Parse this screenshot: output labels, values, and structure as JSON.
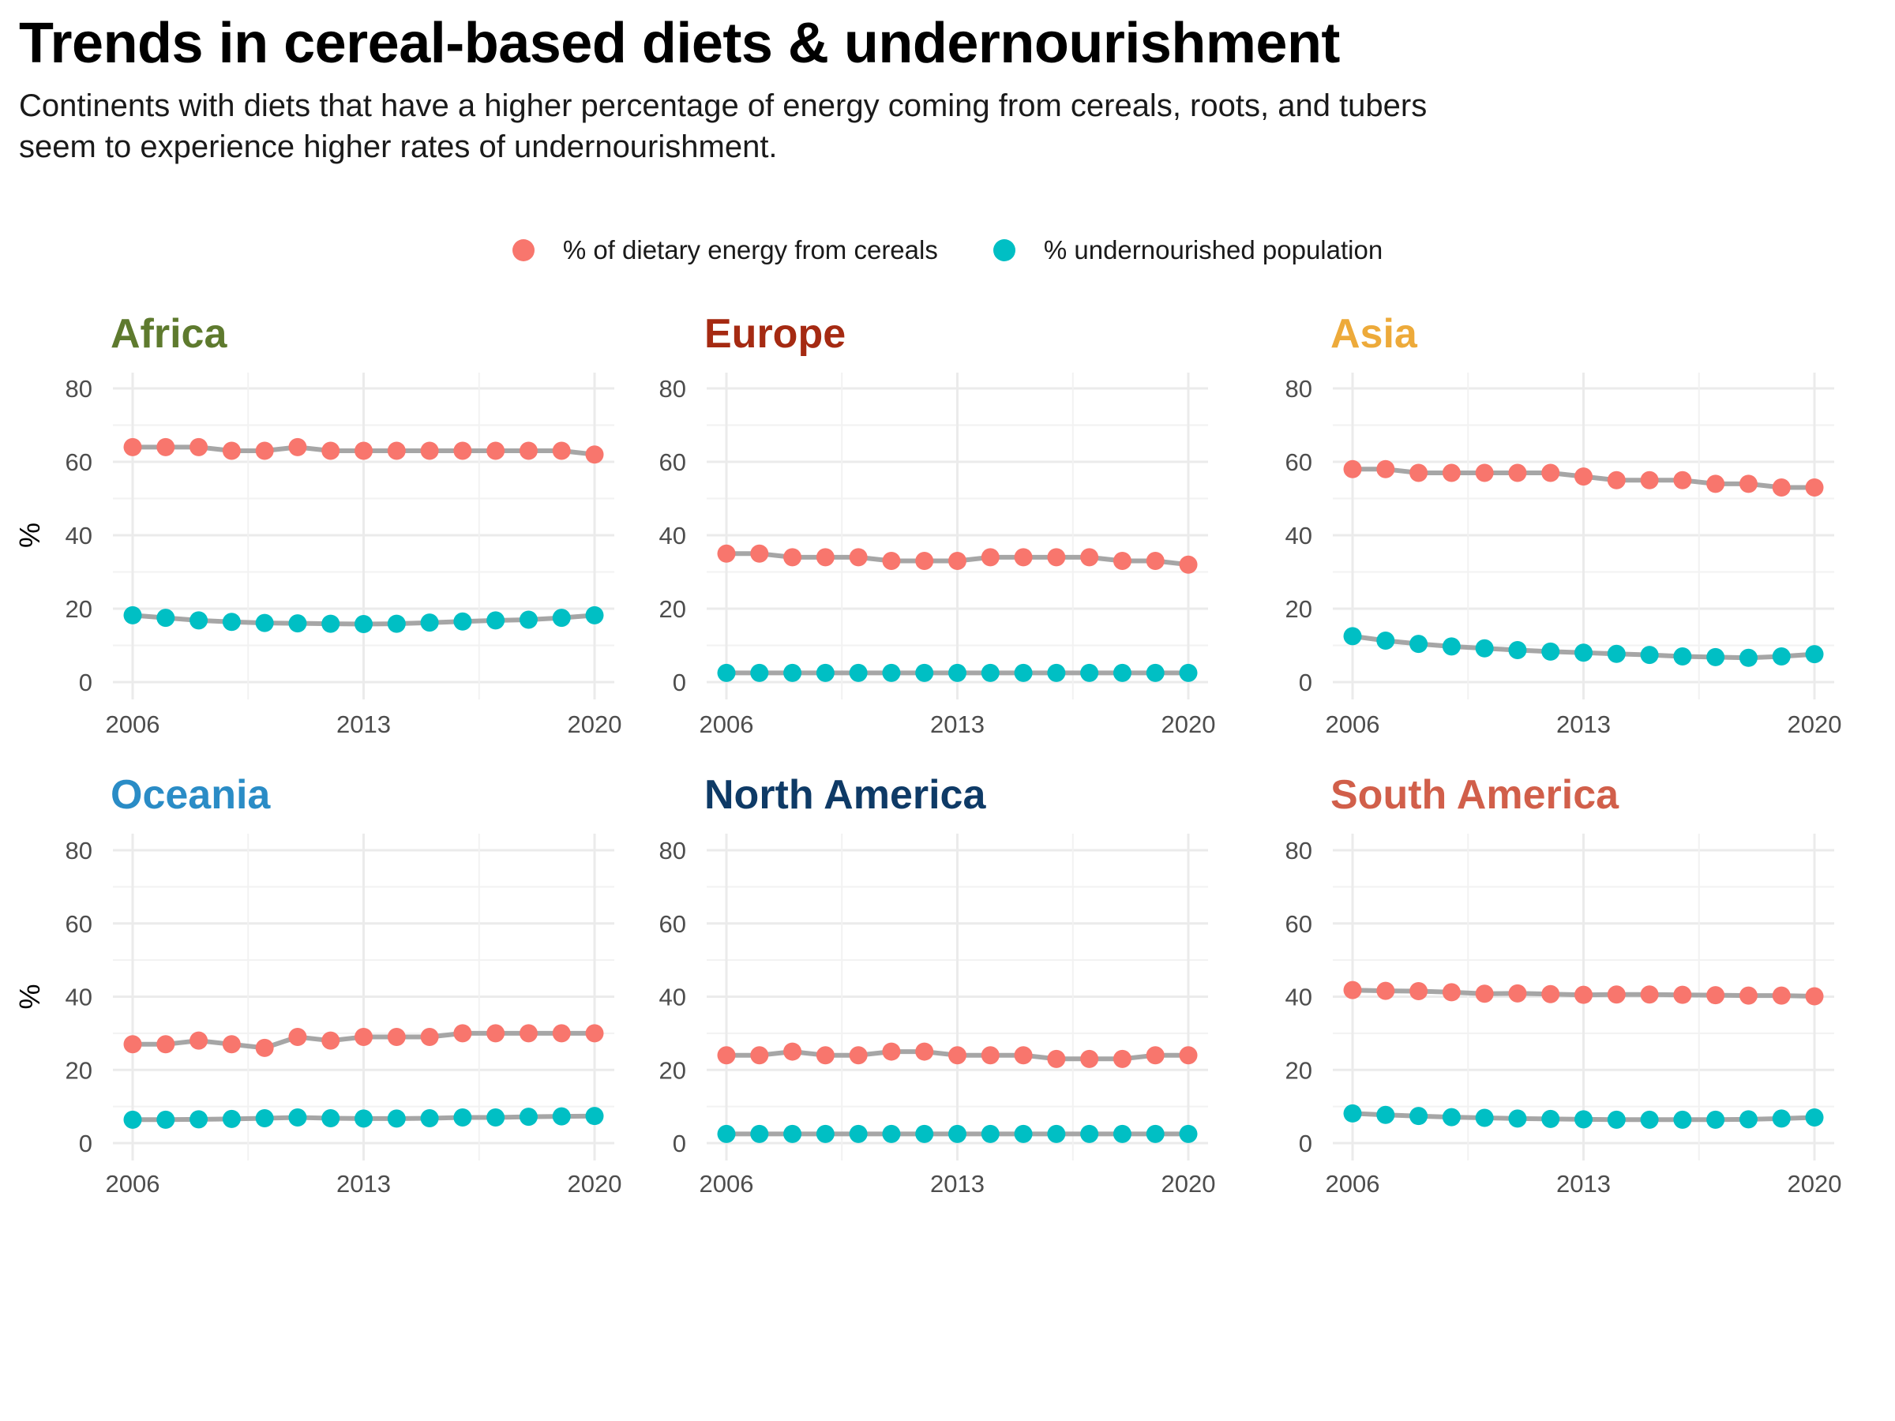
{
  "title": "Trends in cereal-based diets & undernourishment",
  "subtitle": "Continents with diets that have a higher percentage of energy coming from cereals, roots, and tubers seem to experience higher rates of undernourishment.",
  "legend": {
    "items": [
      {
        "label": "% of dietary energy from cereals",
        "color": "#F8766D"
      },
      {
        "label": "% undernourished population",
        "color": "#00BFC4"
      }
    ],
    "position": "top"
  },
  "chart_data": [
    {
      "type": "line",
      "title": "Africa",
      "title_color": "#5E7A2E",
      "ylabel": "%",
      "x": [
        2006,
        2007,
        2008,
        2009,
        2010,
        2011,
        2012,
        2013,
        2014,
        2015,
        2016,
        2017,
        2018,
        2019,
        2020
      ],
      "x_ticks": [
        "2006",
        "2013",
        "2020"
      ],
      "xlim": [
        2006,
        2020
      ],
      "ylim": [
        0,
        80
      ],
      "y_ticks": [
        "0",
        "20",
        "40",
        "60",
        "80"
      ],
      "grid": true,
      "series": [
        {
          "name": "% of dietary energy from cereals",
          "color": "#F8766D",
          "values": [
            64,
            64,
            64,
            63,
            63,
            64,
            63,
            63,
            63,
            63,
            63,
            63,
            63,
            63,
            62
          ]
        },
        {
          "name": "% undernourished population",
          "color": "#00BFC4",
          "values": [
            18.2,
            17.5,
            16.8,
            16.4,
            16.1,
            16.0,
            15.9,
            15.8,
            15.9,
            16.2,
            16.5,
            16.8,
            17.0,
            17.5,
            18.2
          ]
        }
      ]
    },
    {
      "type": "line",
      "title": "Europe",
      "title_color": "#A52A12",
      "ylabel": "",
      "x": [
        2006,
        2007,
        2008,
        2009,
        2010,
        2011,
        2012,
        2013,
        2014,
        2015,
        2016,
        2017,
        2018,
        2019,
        2020
      ],
      "x_ticks": [
        "2006",
        "2013",
        "2020"
      ],
      "xlim": [
        2006,
        2020
      ],
      "ylim": [
        0,
        80
      ],
      "y_ticks": [
        "0",
        "20",
        "40",
        "60",
        "80"
      ],
      "grid": true,
      "series": [
        {
          "name": "% of dietary energy from cereals",
          "color": "#F8766D",
          "values": [
            35,
            35,
            34,
            34,
            34,
            33,
            33,
            33,
            34,
            34,
            34,
            34,
            33,
            33,
            32
          ]
        },
        {
          "name": "% undernourished population",
          "color": "#00BFC4",
          "values": [
            2.5,
            2.5,
            2.5,
            2.5,
            2.5,
            2.5,
            2.5,
            2.5,
            2.5,
            2.5,
            2.5,
            2.5,
            2.5,
            2.5,
            2.5
          ]
        }
      ]
    },
    {
      "type": "line",
      "title": "Asia",
      "title_color": "#EDAA3A",
      "ylabel": "",
      "x": [
        2006,
        2007,
        2008,
        2009,
        2010,
        2011,
        2012,
        2013,
        2014,
        2015,
        2016,
        2017,
        2018,
        2019,
        2020
      ],
      "x_ticks": [
        "2006",
        "2013",
        "2020"
      ],
      "xlim": [
        2006,
        2020
      ],
      "ylim": [
        0,
        80
      ],
      "y_ticks": [
        "0",
        "20",
        "40",
        "60",
        "80"
      ],
      "grid": true,
      "series": [
        {
          "name": "% of dietary energy from cereals",
          "color": "#F8766D",
          "values": [
            58,
            58,
            57,
            57,
            57,
            57,
            57,
            56,
            55,
            55,
            55,
            54,
            54,
            53,
            53
          ]
        },
        {
          "name": "% undernourished population",
          "color": "#00BFC4",
          "values": [
            12.5,
            11.3,
            10.4,
            9.7,
            9.2,
            8.7,
            8.3,
            8.0,
            7.7,
            7.4,
            7.0,
            6.8,
            6.6,
            7.0,
            7.6
          ]
        }
      ]
    },
    {
      "type": "line",
      "title": "Oceania",
      "title_color": "#2A8CC6",
      "ylabel": "%",
      "x": [
        2006,
        2007,
        2008,
        2009,
        2010,
        2011,
        2012,
        2013,
        2014,
        2015,
        2016,
        2017,
        2018,
        2019,
        2020
      ],
      "x_ticks": [
        "2006",
        "2013",
        "2020"
      ],
      "xlim": [
        2006,
        2020
      ],
      "ylim": [
        0,
        80
      ],
      "y_ticks": [
        "0",
        "20",
        "40",
        "60",
        "80"
      ],
      "grid": true,
      "series": [
        {
          "name": "% of dietary energy from cereals",
          "color": "#F8766D",
          "values": [
            27,
            27,
            28,
            27,
            26,
            29,
            28,
            29,
            29,
            29,
            30,
            30,
            30,
            30,
            30
          ]
        },
        {
          "name": "% undernourished population",
          "color": "#00BFC4",
          "values": [
            6.4,
            6.4,
            6.5,
            6.6,
            6.8,
            7.0,
            6.8,
            6.7,
            6.7,
            6.8,
            7.0,
            7.0,
            7.2,
            7.3,
            7.4
          ]
        }
      ]
    },
    {
      "type": "line",
      "title": "North America",
      "title_color": "#0E3A66",
      "ylabel": "",
      "x": [
        2006,
        2007,
        2008,
        2009,
        2010,
        2011,
        2012,
        2013,
        2014,
        2015,
        2016,
        2017,
        2018,
        2019,
        2020
      ],
      "x_ticks": [
        "2006",
        "2013",
        "2020"
      ],
      "xlim": [
        2006,
        2020
      ],
      "ylim": [
        0,
        80
      ],
      "y_ticks": [
        "0",
        "20",
        "40",
        "60",
        "80"
      ],
      "grid": true,
      "series": [
        {
          "name": "% of dietary energy from cereals",
          "color": "#F8766D",
          "values": [
            24,
            24,
            25,
            24,
            24,
            25,
            25,
            24,
            24,
            24,
            23,
            23,
            23,
            24,
            24
          ]
        },
        {
          "name": "% undernourished population",
          "color": "#00BFC4",
          "values": [
            2.5,
            2.5,
            2.5,
            2.5,
            2.5,
            2.5,
            2.5,
            2.5,
            2.5,
            2.5,
            2.5,
            2.5,
            2.5,
            2.5,
            2.5
          ]
        }
      ]
    },
    {
      "type": "line",
      "title": "South America",
      "title_color": "#D15F4A",
      "ylabel": "",
      "x": [
        2006,
        2007,
        2008,
        2009,
        2010,
        2011,
        2012,
        2013,
        2014,
        2015,
        2016,
        2017,
        2018,
        2019,
        2020
      ],
      "x_ticks": [
        "2006",
        "2013",
        "2020"
      ],
      "xlim": [
        2006,
        2020
      ],
      "ylim": [
        0,
        80
      ],
      "y_ticks": [
        "0",
        "20",
        "40",
        "60",
        "80"
      ],
      "grid": true,
      "series": [
        {
          "name": "% of dietary energy from cereals",
          "color": "#F8766D",
          "values": [
            41.8,
            41.6,
            41.5,
            41.2,
            40.8,
            40.9,
            40.7,
            40.5,
            40.6,
            40.6,
            40.5,
            40.4,
            40.3,
            40.3,
            40.1
          ]
        },
        {
          "name": "% undernourished population",
          "color": "#00BFC4",
          "values": [
            8.1,
            7.7,
            7.4,
            7.1,
            6.9,
            6.7,
            6.6,
            6.5,
            6.4,
            6.4,
            6.4,
            6.4,
            6.5,
            6.7,
            7.0
          ]
        }
      ]
    }
  ]
}
